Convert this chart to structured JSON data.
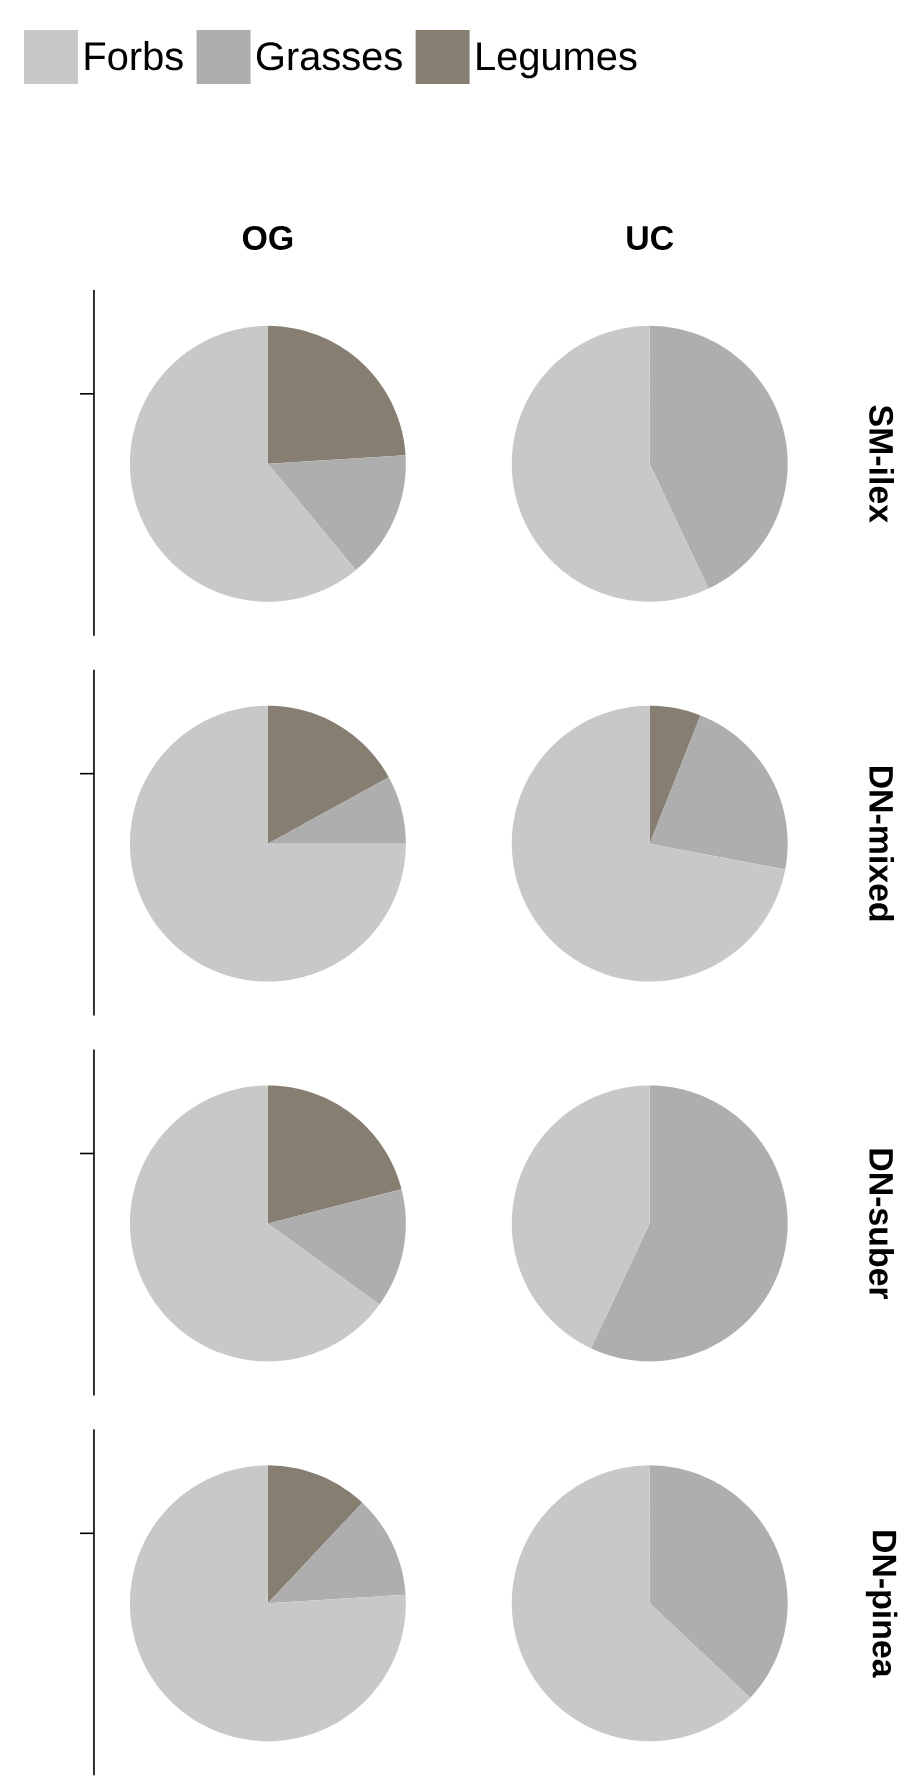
{
  "chart_data": [
    {
      "type": "pie",
      "title": "OG",
      "legend": "top",
      "categories": [
        "Forbs",
        "Grasses",
        "Legumes"
      ],
      "values": [
        61,
        15,
        24
      ],
      "colors": [
        "#c8c8c8",
        "#aeaeae",
        "#877e72"
      ]
    },
    {
      "type": "pie",
      "title": "UC",
      "y2label": "SM-ilex",
      "categories": [
        null,
        null,
        null
      ],
      "values": [
        57,
        43,
        0
      ],
      "colors": [
        "#c8c8c8",
        "#aeaeae",
        "#877e72"
      ]
    },
    {
      "type": "pie",
      "categories": [
        null,
        null,
        null
      ],
      "values": [
        75,
        8,
        17
      ],
      "colors": [
        "#c8c8c8",
        "#aeaeae",
        "#877e72"
      ]
    },
    {
      "type": "pie",
      "y2label": "DN-mixed",
      "categories": [
        null,
        null,
        null
      ],
      "values": [
        72,
        22,
        6
      ],
      "colors": [
        "#c8c8c8",
        "#aeaeae",
        "#877e72"
      ]
    },
    {
      "type": "pie",
      "categories": [
        null,
        null,
        null
      ],
      "values": [
        65,
        14,
        21
      ],
      "colors": [
        "#c8c8c8",
        "#aeaeae",
        "#877e72"
      ]
    },
    {
      "type": "pie",
      "y2label": "DN-suber",
      "categories": [
        null,
        null,
        null
      ],
      "values": [
        43,
        57,
        0
      ],
      "colors": [
        "#c8c8c8",
        "#aeaeae",
        "#877e72"
      ]
    },
    {
      "type": "pie",
      "categories": [
        null,
        null,
        null
      ],
      "values": [
        76,
        12,
        12
      ],
      "colors": [
        "#c8c8c8",
        "#aeaeae",
        "#877e72"
      ]
    },
    {
      "type": "pie",
      "y2label": "DN-pinea",
      "categories": [
        null,
        null,
        null
      ],
      "values": [
        63,
        37,
        0
      ],
      "colors": [
        "#c8c8c8",
        "#aeaeae",
        "#877e72"
      ]
    }
  ]
}
